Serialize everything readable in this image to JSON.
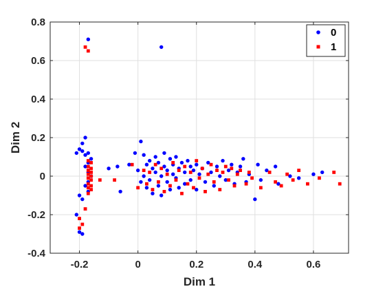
{
  "chart_data": {
    "type": "scatter",
    "title": "",
    "xlabel": "Dim 1",
    "ylabel": "Dim 2",
    "xlim": [
      -0.3,
      0.72
    ],
    "ylim": [
      -0.4,
      0.8
    ],
    "xticks": [
      -0.2,
      0,
      0.2,
      0.4,
      0.6
    ],
    "xtick_labels": [
      "-0.2",
      "0",
      "0.2",
      "0.4",
      "0.6"
    ],
    "yticks": [
      -0.4,
      -0.2,
      0,
      0.2,
      0.4,
      0.6,
      0.8
    ],
    "ytick_labels": [
      "-0.4",
      "-0.2",
      "0",
      "0.2",
      "0.4",
      "0.6",
      "0.8"
    ],
    "grid": true,
    "legend_position": "top-right",
    "series": [
      {
        "name": "0",
        "color": "#0000ff",
        "marker": "dot",
        "points": [
          [
            -0.17,
            0.71
          ],
          [
            0.08,
            0.67
          ],
          [
            -0.21,
            0.12
          ],
          [
            -0.2,
            0.14
          ],
          [
            -0.19,
            0.17
          ],
          [
            -0.18,
            0.2
          ],
          [
            -0.19,
            0.13
          ],
          [
            -0.18,
            0.11
          ],
          [
            -0.17,
            0.12
          ],
          [
            -0.16,
            0.09
          ],
          [
            -0.17,
            0.07
          ],
          [
            -0.18,
            0.05
          ],
          [
            -0.17,
            0.02
          ],
          [
            -0.16,
            0.0
          ],
          [
            -0.17,
            -0.03
          ],
          [
            -0.18,
            -0.05
          ],
          [
            -0.17,
            -0.08
          ],
          [
            -0.19,
            -0.12
          ],
          [
            -0.2,
            -0.1
          ],
          [
            -0.21,
            -0.2
          ],
          [
            -0.2,
            -0.29
          ],
          [
            -0.19,
            -0.3
          ],
          [
            -0.1,
            0.04
          ],
          [
            -0.07,
            0.05
          ],
          [
            -0.06,
            -0.08
          ],
          [
            -0.03,
            0.06
          ],
          [
            -0.01,
            0.12
          ],
          [
            0.0,
            0.03
          ],
          [
            0.01,
            -0.03
          ],
          [
            0.01,
            0.18
          ],
          [
            0.02,
            0.0
          ],
          [
            0.02,
            0.11
          ],
          [
            0.03,
            -0.06
          ],
          [
            0.03,
            0.06
          ],
          [
            0.04,
            0.08
          ],
          [
            0.04,
            -0.02
          ],
          [
            0.05,
            0.04
          ],
          [
            0.05,
            -0.09
          ],
          [
            0.06,
            0.1
          ],
          [
            0.06,
            0.02
          ],
          [
            0.07,
            -0.05
          ],
          [
            0.07,
            0.07
          ],
          [
            0.08,
            0.0
          ],
          [
            0.08,
            -0.1
          ],
          [
            0.09,
            0.05
          ],
          [
            0.09,
            0.12
          ],
          [
            0.1,
            -0.03
          ],
          [
            0.1,
            0.03
          ],
          [
            0.11,
            0.09
          ],
          [
            0.11,
            -0.07
          ],
          [
            0.12,
            0.01
          ],
          [
            0.12,
            0.06
          ],
          [
            0.13,
            -0.01
          ],
          [
            0.13,
            0.1
          ],
          [
            0.14,
            0.04
          ],
          [
            0.14,
            -0.06
          ],
          [
            0.15,
            0.07
          ],
          [
            0.16,
            0.02
          ],
          [
            0.16,
            -0.04
          ],
          [
            0.17,
            0.08
          ],
          [
            0.18,
            0.05
          ],
          [
            0.18,
            -0.02
          ],
          [
            0.19,
            0.03
          ],
          [
            0.2,
            0.06
          ],
          [
            0.2,
            -0.07
          ],
          [
            0.21,
            0.01
          ],
          [
            0.22,
            0.04
          ],
          [
            0.23,
            -0.03
          ],
          [
            0.24,
            0.07
          ],
          [
            0.25,
            0.02
          ],
          [
            0.26,
            -0.05
          ],
          [
            0.27,
            0.05
          ],
          [
            0.28,
            0.0
          ],
          [
            0.29,
            0.08
          ],
          [
            0.3,
            -0.02
          ],
          [
            0.31,
            0.03
          ],
          [
            0.32,
            0.06
          ],
          [
            0.33,
            -0.04
          ],
          [
            0.34,
            0.02
          ],
          [
            0.35,
            0.05
          ],
          [
            0.36,
            0.09
          ],
          [
            0.37,
            -0.03
          ],
          [
            0.38,
            0.01
          ],
          [
            0.4,
            -0.12
          ],
          [
            0.41,
            0.06
          ],
          [
            0.42,
            -0.02
          ],
          [
            0.44,
            0.03
          ],
          [
            0.47,
            0.05
          ],
          [
            0.48,
            -0.04
          ],
          [
            0.52,
            0.0
          ],
          [
            0.55,
            -0.01
          ],
          [
            0.6,
            0.01
          ],
          [
            0.63,
            0.02
          ]
        ]
      },
      {
        "name": "1",
        "color": "#ff0000",
        "marker": "square",
        "points": [
          [
            -0.18,
            0.67
          ],
          [
            -0.17,
            0.65
          ],
          [
            -0.17,
            0.08
          ],
          [
            -0.16,
            0.07
          ],
          [
            -0.17,
            0.05
          ],
          [
            -0.16,
            0.04
          ],
          [
            -0.17,
            0.03
          ],
          [
            -0.16,
            0.02
          ],
          [
            -0.17,
            0.01
          ],
          [
            -0.16,
            0.0
          ],
          [
            -0.17,
            -0.01
          ],
          [
            -0.16,
            -0.02
          ],
          [
            -0.17,
            -0.04
          ],
          [
            -0.16,
            -0.05
          ],
          [
            -0.17,
            -0.06
          ],
          [
            -0.16,
            -0.07
          ],
          [
            -0.17,
            -0.09
          ],
          [
            -0.18,
            -0.17
          ],
          [
            -0.13,
            -0.02
          ],
          [
            -0.2,
            -0.22
          ],
          [
            -0.19,
            -0.25
          ],
          [
            -0.2,
            -0.27
          ],
          [
            -0.08,
            -0.02
          ],
          [
            -0.02,
            0.06
          ],
          [
            0.0,
            -0.06
          ],
          [
            0.02,
            0.03
          ],
          [
            0.03,
            -0.04
          ],
          [
            0.04,
            0.02
          ],
          [
            0.05,
            -0.07
          ],
          [
            0.06,
            0.06
          ],
          [
            0.07,
            -0.03
          ],
          [
            0.08,
            0.04
          ],
          [
            0.09,
            -0.08
          ],
          [
            0.1,
            0.01
          ],
          [
            0.11,
            -0.05
          ],
          [
            0.12,
            0.07
          ],
          [
            0.13,
            -0.02
          ],
          [
            0.14,
            0.03
          ],
          [
            0.15,
            -0.09
          ],
          [
            0.16,
            0.05
          ],
          [
            0.17,
            -0.04
          ],
          [
            0.18,
            0.02
          ],
          [
            0.19,
            -0.06
          ],
          [
            0.2,
            0.08
          ],
          [
            0.21,
            -0.01
          ],
          [
            0.22,
            0.04
          ],
          [
            0.23,
            -0.08
          ],
          [
            0.24,
            0.01
          ],
          [
            0.25,
            0.06
          ],
          [
            0.26,
            -0.03
          ],
          [
            0.27,
            0.03
          ],
          [
            0.28,
            -0.07
          ],
          [
            0.29,
            0.02
          ],
          [
            0.3,
            0.05
          ],
          [
            0.31,
            -0.02
          ],
          [
            0.32,
            0.04
          ],
          [
            0.33,
            -0.05
          ],
          [
            0.34,
            0.01
          ],
          [
            0.35,
            0.03
          ],
          [
            0.37,
            -0.04
          ],
          [
            0.38,
            0.02
          ],
          [
            0.39,
            -0.01
          ],
          [
            0.42,
            -0.06
          ],
          [
            0.45,
            0.02
          ],
          [
            0.47,
            -0.03
          ],
          [
            0.49,
            -0.05
          ],
          [
            0.51,
            0.01
          ],
          [
            0.53,
            -0.02
          ],
          [
            0.55,
            0.03
          ],
          [
            0.58,
            -0.04
          ],
          [
            0.62,
            -0.01
          ],
          [
            0.67,
            0.02
          ],
          [
            0.69,
            -0.04
          ]
        ]
      }
    ]
  }
}
